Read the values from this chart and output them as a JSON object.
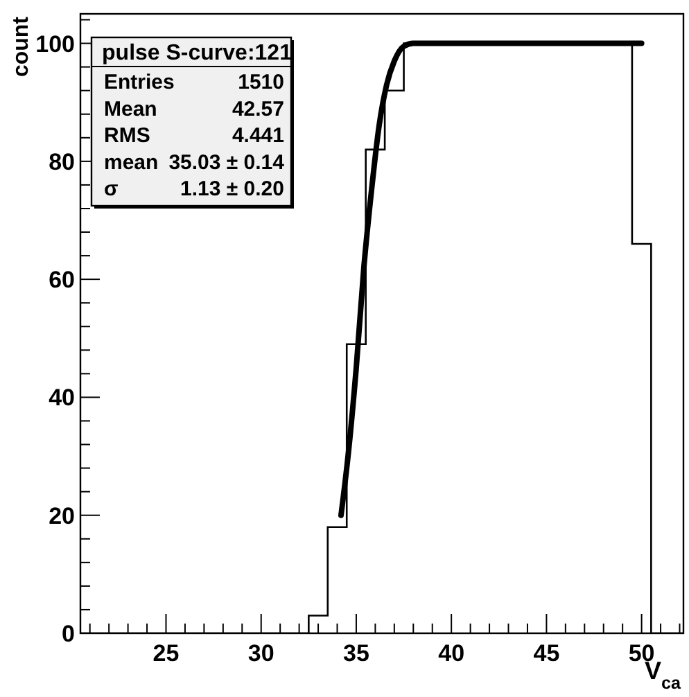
{
  "chart_data": {
    "type": "histogram",
    "title": "pulse S-curve:121",
    "xlabel": "V$_{ca}$",
    "ylabel": "count",
    "bins": [
      20.5,
      21.5,
      22.5,
      23.5,
      24.5,
      25.5,
      26.5,
      27.5,
      28.5,
      29.5,
      30.5,
      31.5,
      32.5,
      33.5,
      34.5,
      35.5,
      36.5,
      37.5,
      38.5,
      39.5,
      40.5,
      41.5,
      42.5,
      43.5,
      44.5,
      45.5,
      46.5,
      47.5,
      48.5,
      49.5,
      50.5,
      51.5,
      52.5
    ],
    "values": [
      0,
      0,
      0,
      0,
      0,
      0,
      0,
      0,
      0,
      0,
      0,
      0,
      3,
      18,
      49,
      82,
      92,
      100,
      100,
      100,
      100,
      100,
      100,
      100,
      100,
      100,
      100,
      100,
      100,
      66,
      0,
      0
    ],
    "color": "#000000",
    "series": [
      {
        "type": "line",
        "color": "#000000",
        "x": [
          34.2,
          34.6,
          35.0,
          35.4,
          35.8,
          36.2,
          36.6,
          37.0,
          37.5,
          38.0,
          50.0
        ],
        "values": [
          20,
          31,
          45,
          62,
          75,
          86,
          93,
          97,
          99.5,
          100,
          100
        ]
      }
    ],
    "annotations": [
      "Entries",
      "1510",
      "Mean",
      "42.57",
      "RMS",
      "4.441",
      "mean",
      "35.03 ± 0.14",
      "σ",
      "1.13 ± 0.20"
    ],
    "xlim": [
      20.5,
      52.2
    ],
    "ylim": [
      0,
      105
    ],
    "xticks": [
      {
        "value": 21,
        "label": null
      },
      {
        "value": 22,
        "label": null
      },
      {
        "value": 23,
        "label": null
      },
      {
        "value": 24,
        "label": null
      },
      25,
      {
        "value": 26,
        "label": null
      },
      {
        "value": 27,
        "label": null
      },
      {
        "value": 28,
        "label": null
      },
      {
        "value": 29,
        "label": null
      },
      30,
      {
        "value": 31,
        "label": null
      },
      {
        "value": 32,
        "label": null
      },
      {
        "value": 33,
        "label": null
      },
      {
        "value": 34,
        "label": null
      },
      35,
      {
        "value": 36,
        "label": null
      },
      {
        "value": 37,
        "label": null
      },
      {
        "value": 38,
        "label": null
      },
      {
        "value": 39,
        "label": null
      },
      40,
      {
        "value": 41,
        "label": null
      },
      {
        "value": 42,
        "label": null
      },
      {
        "value": 43,
        "label": null
      },
      {
        "value": 44,
        "label": null
      },
      45,
      {
        "value": 46,
        "label": null
      },
      {
        "value": 47,
        "label": null
      },
      {
        "value": 48,
        "label": null
      },
      {
        "value": 49,
        "label": null
      },
      50,
      {
        "value": 51,
        "label": null
      },
      {
        "value": 52,
        "label": null
      }
    ],
    "yticks": [
      0,
      {
        "value": 4,
        "label": null
      },
      {
        "value": 8,
        "label": null
      },
      {
        "value": 12,
        "label": null
      },
      {
        "value": 16,
        "label": null
      },
      20,
      {
        "value": 24,
        "label": null
      },
      {
        "value": 28,
        "label": null
      },
      {
        "value": 32,
        "label": null
      },
      {
        "value": 36,
        "label": null
      },
      40,
      {
        "value": 44,
        "label": null
      },
      {
        "value": 48,
        "label": null
      },
      {
        "value": 52,
        "label": null
      },
      {
        "value": 56,
        "label": null
      },
      60,
      {
        "value": 64,
        "label": null
      },
      {
        "value": 68,
        "label": null
      },
      {
        "value": 72,
        "label": null
      },
      {
        "value": 76,
        "label": null
      },
      80,
      {
        "value": 84,
        "label": null
      },
      {
        "value": 88,
        "label": null
      },
      {
        "value": 92,
        "label": null
      },
      {
        "value": 96,
        "label": null
      },
      100,
      {
        "value": 104,
        "label": null
      }
    ],
    "log": false
  }
}
